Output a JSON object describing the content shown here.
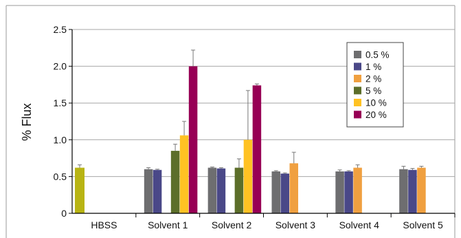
{
  "chart_data": {
    "type": "bar",
    "title": "",
    "xlabel": "",
    "ylabel": "% Flux",
    "ylim": [
      0,
      2.5
    ],
    "yticks": [
      "0",
      "0.5",
      "1.0",
      "1.5",
      "2.0",
      "2.5"
    ],
    "ytick_values": [
      0,
      0.5,
      1.0,
      1.5,
      2.0,
      2.5
    ],
    "grid": "horizontal",
    "legend_position": "top-right",
    "categories": [
      "HBSS",
      "Solvent 1",
      "Solvent 2",
      "Solvent 3",
      "Solvent 4",
      "Solvent 5"
    ],
    "hbss": {
      "value": 0.62,
      "error": 0.04,
      "color": "#b8b413"
    },
    "series": [
      {
        "name": "0.5 %",
        "color": "#6e6e70",
        "values": [
          null,
          0.6,
          0.62,
          0.57,
          0.57,
          0.6
        ],
        "errors": [
          null,
          0.02,
          0.01,
          0.01,
          0.02,
          0.04
        ]
      },
      {
        "name": "1 %",
        "color": "#4a4888",
        "values": [
          null,
          0.59,
          0.61,
          0.54,
          0.57,
          0.59
        ],
        "errors": [
          null,
          0.01,
          0.01,
          0.01,
          0.01,
          0.02
        ]
      },
      {
        "name": "2 %",
        "color": "#f0a040",
        "values": [
          null,
          null,
          null,
          0.68,
          0.62,
          0.62
        ],
        "errors": [
          null,
          null,
          null,
          0.15,
          0.04,
          0.02
        ]
      },
      {
        "name": "5 %",
        "color": "#5c6e2a",
        "values": [
          null,
          0.85,
          0.62,
          null,
          null,
          null
        ],
        "errors": [
          null,
          0.09,
          0.12,
          null,
          null,
          null
        ]
      },
      {
        "name": "10 %",
        "color": "#ffc223",
        "values": [
          null,
          1.06,
          1.0,
          null,
          null,
          null
        ],
        "errors": [
          null,
          0.19,
          0.67,
          null,
          null,
          null
        ]
      },
      {
        "name": "20 %",
        "color": "#970055",
        "values": [
          null,
          2.0,
          1.74,
          null,
          null,
          null
        ],
        "errors": [
          null,
          0.22,
          0.02,
          null,
          null,
          null
        ]
      }
    ]
  }
}
